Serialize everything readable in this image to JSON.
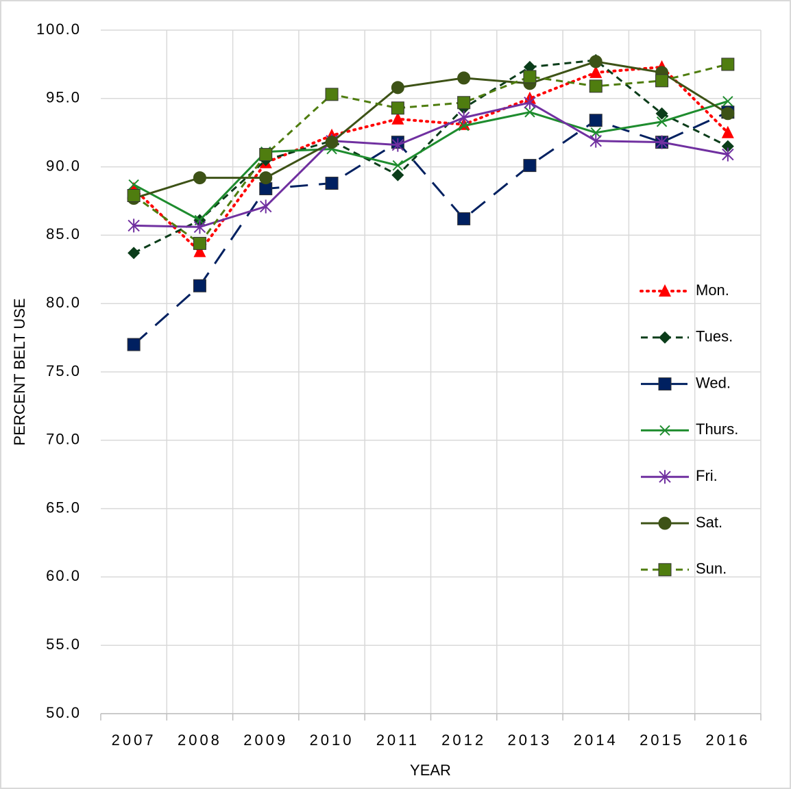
{
  "chart_data": {
    "type": "line",
    "y_label": "PERCENT BELT USE",
    "x_label": "YEAR",
    "categories": [
      "2007",
      "2008",
      "2009",
      "2010",
      "2011",
      "2012",
      "2013",
      "2014",
      "2015",
      "2016"
    ],
    "ylim": [
      50,
      100
    ],
    "yticks": [
      {
        "value": 50,
        "label": "50.0"
      },
      {
        "value": 55,
        "label": "55.0"
      },
      {
        "value": 60,
        "label": "60.0"
      },
      {
        "value": 65,
        "label": "65.0"
      },
      {
        "value": 70,
        "label": "70.0"
      },
      {
        "value": 75,
        "label": "75.0"
      },
      {
        "value": 80,
        "label": "80.0"
      },
      {
        "value": 85,
        "label": "85.0"
      },
      {
        "value": 90,
        "label": "90.0"
      },
      {
        "value": 95,
        "label": "95.0"
      },
      {
        "value": 100,
        "label": "100.0"
      }
    ],
    "grid": true,
    "legend": "right",
    "series": [
      {
        "name": "Mon.",
        "color": "#ff0000",
        "dash": "dotted",
        "marker": "triangle",
        "values": [
          88.4,
          83.8,
          90.3,
          92.3,
          93.5,
          93.1,
          95.0,
          96.9,
          97.3,
          92.5
        ]
      },
      {
        "name": "Tues.",
        "color": "#0b3d1a",
        "dash": "dashed",
        "marker": "diamond",
        "values": [
          83.7,
          86.1,
          90.5,
          91.9,
          89.4,
          94.3,
          97.3,
          97.8,
          93.9,
          91.5
        ]
      },
      {
        "name": "Wed.",
        "color": "#002060",
        "dash": "long-dash",
        "marker": "square",
        "values": [
          77.0,
          81.3,
          88.4,
          88.8,
          91.8,
          86.2,
          90.1,
          93.4,
          91.8,
          94.0
        ]
      },
      {
        "name": "Thurs.",
        "color": "#1e8c2e",
        "dash": "solid",
        "marker": "x",
        "values": [
          88.7,
          86.1,
          91.1,
          91.3,
          90.1,
          93.0,
          94.0,
          92.5,
          93.3,
          94.8
        ]
      },
      {
        "name": "Fri.",
        "color": "#7030a0",
        "dash": "solid",
        "marker": "star",
        "values": [
          85.7,
          85.6,
          87.1,
          91.9,
          91.6,
          93.6,
          94.7,
          91.9,
          91.8,
          90.9
        ]
      },
      {
        "name": "Sat.",
        "color": "#3d5216",
        "dash": "solid",
        "marker": "circle",
        "values": [
          87.7,
          89.2,
          89.2,
          91.8,
          95.8,
          96.5,
          96.1,
          97.7,
          96.9,
          93.9
        ]
      },
      {
        "name": "Sun.",
        "color": "#4f7d0f",
        "dash": "dashed",
        "marker": "square",
        "values": [
          87.9,
          84.4,
          90.9,
          95.3,
          94.3,
          94.7,
          96.6,
          95.9,
          96.3,
          97.5
        ]
      }
    ]
  }
}
